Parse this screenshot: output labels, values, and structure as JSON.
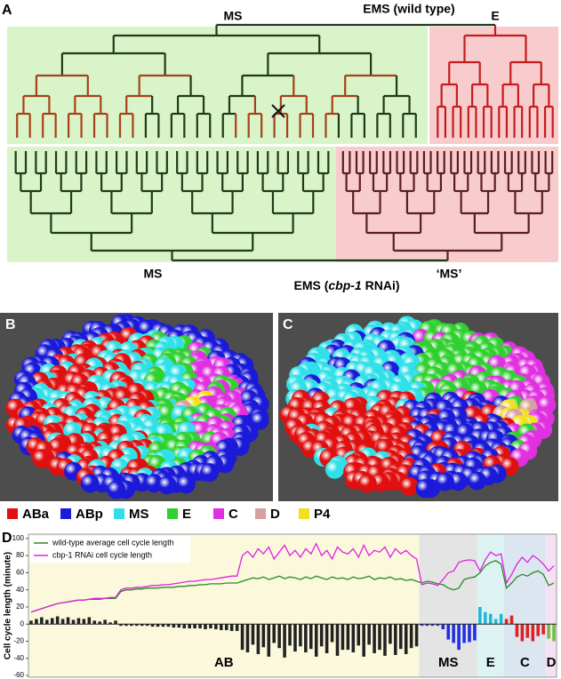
{
  "panel_labels": [
    "A",
    "B",
    "C",
    "D"
  ],
  "panel_a": {
    "top": {
      "title": "EMS (wild type)",
      "left": "MS",
      "right": "E"
    },
    "bottom": {
      "title_parts": [
        "EMS (",
        "cbp-1",
        " RNAi)"
      ],
      "left": "MS",
      "right": "‘MS’"
    }
  },
  "legend": [
    {
      "label": "ABa",
      "color": "#e01010"
    },
    {
      "label": "ABp",
      "color": "#1a1ad8"
    },
    {
      "label": "MS",
      "color": "#30e0e8"
    },
    {
      "label": "E",
      "color": "#30d030"
    },
    {
      "label": "C",
      "color": "#e030e0"
    },
    {
      "label": "D",
      "color": "#d8a0a0"
    },
    {
      "label": "P4",
      "color": "#f0e020"
    }
  ],
  "chart_data": {
    "type": "line",
    "y_label": "Cell cycle length (minute)",
    "ylim": [
      -62,
      105
    ],
    "yticks": [
      -60,
      -40,
      -20,
      0,
      20,
      40,
      60,
      80,
      100
    ],
    "series": [
      {
        "name": "wild-type average cell cycle length",
        "color": "#2a8a2a",
        "values": [
          14,
          16,
          18,
          20,
          22,
          24,
          25,
          26,
          27,
          28,
          28,
          29,
          29,
          29,
          30,
          30,
          30,
          38,
          40,
          40,
          41,
          41,
          42,
          42,
          42,
          43,
          43,
          43,
          44,
          44,
          45,
          45,
          46,
          46,
          47,
          47,
          47,
          48,
          48,
          48,
          50,
          52,
          54,
          53,
          55,
          52,
          54,
          56,
          53,
          55,
          54,
          52,
          55,
          53,
          56,
          54,
          52,
          55,
          53,
          54,
          52,
          55,
          53,
          54,
          56,
          52,
          54,
          53,
          55,
          52,
          53,
          51,
          52,
          50,
          48,
          50,
          49,
          47,
          46,
          42,
          40,
          42,
          52,
          54,
          55,
          60,
          68,
          72,
          74,
          70,
          42,
          48,
          55,
          58,
          56,
          60,
          62,
          58,
          45,
          48
        ]
      },
      {
        "name": "cbp-1 RNAi cell cycle length",
        "color": "#e020e0",
        "values": [
          14,
          16,
          18,
          20,
          22,
          24,
          25,
          26,
          27,
          28,
          28,
          29,
          30,
          30,
          30,
          31,
          31,
          40,
          42,
          42,
          43,
          43,
          44,
          45,
          45,
          46,
          46,
          47,
          48,
          49,
          50,
          50,
          51,
          52,
          52,
          53,
          54,
          55,
          56,
          56,
          80,
          85,
          78,
          88,
          82,
          90,
          76,
          84,
          92,
          80,
          86,
          78,
          88,
          82,
          94,
          80,
          86,
          76,
          90,
          84,
          82,
          88,
          78,
          92,
          80,
          86,
          84,
          90,
          78,
          88,
          82,
          86,
          80,
          76,
          46,
          48,
          47,
          45,
          52,
          60,
          62,
          72,
          74,
          75,
          74,
          62,
          75,
          84,
          80,
          82,
          48,
          58,
          70,
          78,
          72,
          80,
          76,
          70,
          62,
          68
        ]
      }
    ],
    "differences": {
      "values": [
        4,
        6,
        8,
        5,
        7,
        9,
        6,
        8,
        5,
        7,
        6,
        8,
        4,
        3,
        5,
        2,
        4,
        -2,
        -2,
        -2,
        -2,
        -2,
        -2,
        -3,
        -3,
        -3,
        -3,
        -4,
        -4,
        -5,
        -5,
        -5,
        -5,
        -6,
        -5,
        -6,
        -7,
        -7,
        -8,
        -8,
        -30,
        -33,
        -24,
        -35,
        -27,
        -38,
        -22,
        -28,
        -39,
        -25,
        -32,
        -26,
        -33,
        -29,
        -38,
        -26,
        -34,
        -21,
        -37,
        -30,
        -30,
        -33,
        -25,
        -38,
        -24,
        -34,
        -30,
        -37,
        -23,
        -36,
        -29,
        -35,
        -28,
        -26,
        -2,
        -2,
        -2,
        -2,
        -6,
        -18,
        -22,
        -30,
        -22,
        -21,
        -19,
        20,
        14,
        12,
        6,
        12,
        6,
        10,
        -15,
        -20,
        -16,
        -20,
        -14,
        -12,
        -17,
        -20
      ]
    },
    "regions": [
      {
        "label": "AB",
        "from": 0,
        "to": 74,
        "background": "#fbf8dc",
        "bar_color": "#222222"
      },
      {
        "label": "MS",
        "from": 74,
        "to": 85,
        "background": "#e4e4e4",
        "bar_color": "#2030e0"
      },
      {
        "label": "E",
        "from": 85,
        "to": 90,
        "background": "#ddf3f3",
        "bar_color": "#20b8d8"
      },
      {
        "label": "C",
        "from": 90,
        "to": 98,
        "background": "#dbe6f0",
        "bar_color": "#e02020"
      },
      {
        "label": "D",
        "from": 98,
        "to": 100,
        "background": "#f4e2f4",
        "bar_color": "#70c040"
      }
    ]
  }
}
